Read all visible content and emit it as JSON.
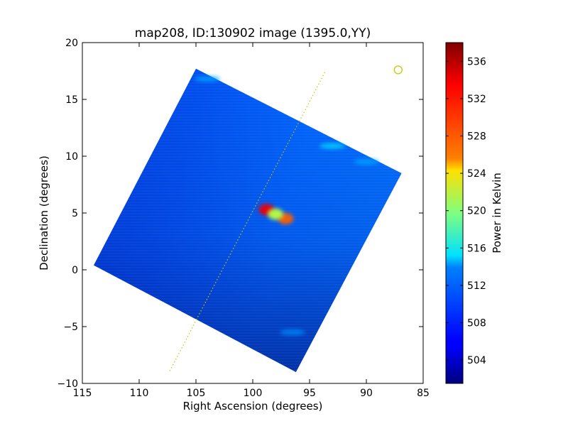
{
  "chart_data": {
    "type": "heatmap",
    "title": "map208, ID:130902 image (1395.0,YY)",
    "xlabel": "Right Ascension (degrees)",
    "ylabel": "Declination (degrees)",
    "xlim": [
      115,
      85
    ],
    "ylim": [
      -10,
      20
    ],
    "x_ticks": [
      115,
      110,
      105,
      100,
      95,
      90,
      85
    ],
    "y_ticks": [
      -10,
      -5,
      0,
      5,
      10,
      15,
      20
    ],
    "colorbar": {
      "label": "Power in Kelvin",
      "range": [
        501.5,
        538
      ],
      "ticks": [
        504,
        508,
        512,
        516,
        520,
        524,
        528,
        532,
        536
      ],
      "colormap": "jet"
    },
    "background_level": 507,
    "map_footprint_corners": [
      [
        105.0,
        17.7
      ],
      [
        86.9,
        8.5
      ],
      [
        96.2,
        -9.0
      ],
      [
        114.0,
        0.4
      ]
    ],
    "dotted_line": {
      "from": [
        107.3,
        -8.9
      ],
      "to": [
        93.6,
        17.5
      ],
      "color": "#c8c800"
    },
    "marker_circle": {
      "ra": 87.2,
      "dec": 17.6,
      "color": "#c8c800"
    },
    "hotspots": [
      {
        "ra": 98.8,
        "dec": 5.3,
        "value": 534
      },
      {
        "ra": 97.1,
        "dec": 4.5,
        "value": 530
      },
      {
        "ra": 98.0,
        "dec": 4.9,
        "value": 522
      },
      {
        "ra": 93.0,
        "dec": 10.9,
        "value": 514
      },
      {
        "ra": 90.0,
        "dec": 9.5,
        "value": 512
      },
      {
        "ra": 104.0,
        "dec": 16.8,
        "value": 512
      },
      {
        "ra": 96.5,
        "dec": -5.5,
        "value": 511
      }
    ]
  }
}
